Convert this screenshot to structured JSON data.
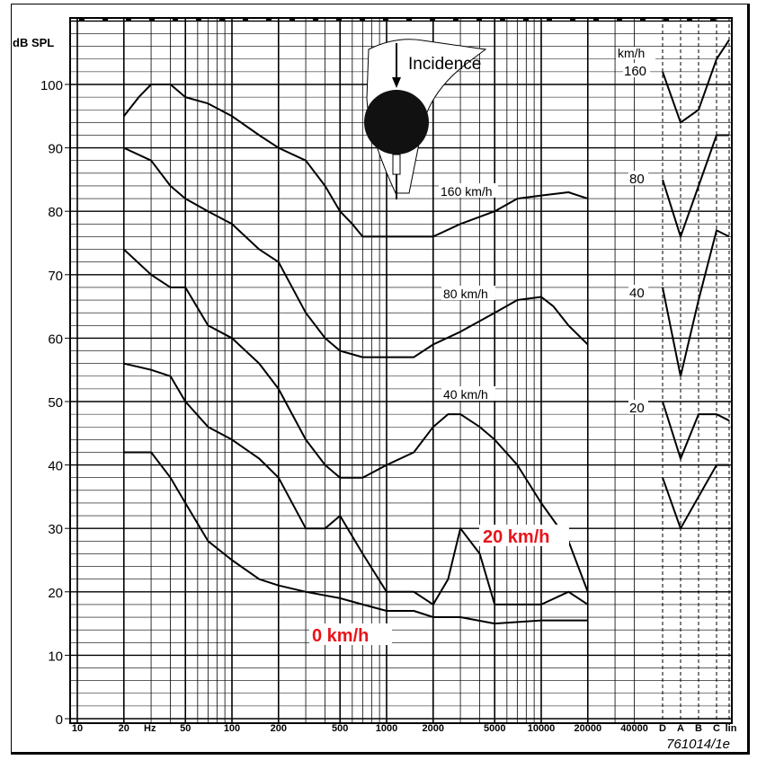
{
  "chart_data": {
    "type": "line",
    "ylabel": "dB SPL",
    "xunit": "Hz",
    "x_scale": "log",
    "ylim": [
      0,
      110
    ],
    "xlim": [
      10,
      40000
    ],
    "yticks": [
      0,
      10,
      20,
      30,
      40,
      50,
      60,
      70,
      80,
      90,
      100
    ],
    "xticks": [
      {
        "value": 10,
        "label": "10"
      },
      {
        "value": 20,
        "label": "20"
      },
      {
        "value": 50,
        "label": "50"
      },
      {
        "value": 100,
        "label": "100"
      },
      {
        "value": 200,
        "label": "200"
      },
      {
        "value": 500,
        "label": "500"
      },
      {
        "value": 1000,
        "label": "1000"
      },
      {
        "value": 2000,
        "label": "2000"
      },
      {
        "value": 5000,
        "label": "5000"
      },
      {
        "value": 10000,
        "label": "10000"
      },
      {
        "value": 20000,
        "label": "20000"
      },
      {
        "value": 40000,
        "label": "40000"
      }
    ],
    "weighting_labels": [
      "D",
      "A",
      "B",
      "C",
      "lin"
    ],
    "grid": true,
    "series": [
      {
        "name": "160 km/h",
        "color": "#000000",
        "x": [
          20,
          25,
          30,
          40,
          50,
          70,
          100,
          150,
          200,
          300,
          400,
          500,
          600,
          700,
          800,
          1000,
          1500,
          2000,
          3000,
          5000,
          7000,
          10000,
          15000,
          20000
        ],
        "y": [
          95,
          98,
          100,
          100,
          98,
          97,
          95,
          92,
          90,
          88,
          84,
          80,
          78,
          76,
          76,
          76,
          76,
          76,
          78,
          80,
          82,
          82.5,
          83,
          82
        ]
      },
      {
        "name": "80 km/h",
        "color": "#000000",
        "x": [
          20,
          30,
          40,
          50,
          70,
          100,
          150,
          200,
          300,
          400,
          500,
          700,
          1000,
          1500,
          2000,
          3000,
          5000,
          7000,
          10000,
          12000,
          15000,
          20000
        ],
        "y": [
          90,
          88,
          84,
          82,
          80,
          78,
          74,
          72,
          64,
          60,
          58,
          57,
          57,
          57,
          59,
          61,
          64,
          66,
          66.5,
          65,
          62,
          59
        ]
      },
      {
        "name": "40 km/h",
        "color": "#000000",
        "x": [
          20,
          30,
          40,
          50,
          70,
          100,
          150,
          200,
          300,
          400,
          500,
          700,
          1000,
          1500,
          2000,
          2500,
          3000,
          4000,
          5000,
          7000,
          10000,
          15000,
          20000
        ],
        "y": [
          74,
          70,
          68,
          68,
          62,
          60,
          56,
          52,
          44,
          40,
          38,
          38,
          40,
          42,
          46,
          48,
          48,
          46,
          44,
          40,
          34,
          28,
          20
        ]
      },
      {
        "name": "20 km/h",
        "color": "#000000",
        "x": [
          20,
          30,
          40,
          50,
          70,
          100,
          150,
          200,
          300,
          400,
          500,
          700,
          1000,
          1500,
          2000,
          2500,
          3000,
          4000,
          5000,
          7000,
          10000,
          15000,
          20000
        ],
        "y": [
          56,
          55,
          54,
          50,
          46,
          44,
          41,
          38,
          30,
          30,
          32,
          26,
          20,
          20,
          18,
          22,
          30,
          26,
          18,
          18,
          18,
          20,
          18
        ]
      },
      {
        "name": "0 km/h",
        "color": "#000000",
        "x": [
          20,
          30,
          40,
          50,
          70,
          100,
          150,
          200,
          300,
          500,
          700,
          1000,
          1500,
          2000,
          3000,
          5000,
          10000,
          20000
        ],
        "y": [
          42,
          42,
          38,
          34,
          28,
          25,
          22,
          21,
          20,
          19,
          18,
          17,
          17,
          16,
          16,
          15,
          15.5,
          15.5
        ]
      }
    ],
    "weighted_levels": [
      {
        "name": "160",
        "values": [
          102,
          94,
          96,
          104,
          107
        ]
      },
      {
        "name": "80",
        "values": [
          85,
          76,
          84,
          92,
          92
        ]
      },
      {
        "name": "40",
        "values": [
          68,
          54,
          66,
          77,
          76
        ]
      },
      {
        "name": "20",
        "values": [
          50,
          41,
          48,
          48,
          47
        ]
      },
      {
        "name": "",
        "values": [
          38,
          30,
          35,
          40,
          40
        ]
      }
    ],
    "annotations": {
      "incidence": "Incidence",
      "curve_labels": [
        "160 km/h",
        "80 km/h",
        "40 km/h",
        "20 km/h",
        "0 km/h"
      ],
      "right_unit": "km/h",
      "right_labels": [
        "160",
        "80",
        "40",
        "20"
      ],
      "highlight_color": "#e8141b"
    },
    "figure_code": "761014/1e"
  }
}
